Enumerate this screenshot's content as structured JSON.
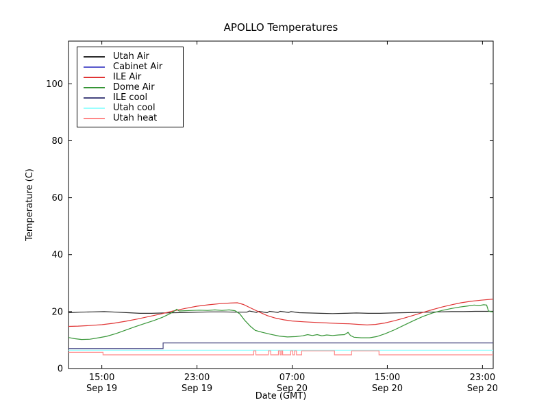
{
  "title": "APOLLO Temperatures",
  "chart_data": {
    "type": "line",
    "title": "APOLLO Temperatures",
    "xlabel": "Date (GMT)",
    "ylabel": "Temperature (C)",
    "x_unit": "hours since Sep 19 00:00 GMT",
    "xlim": [
      12.2,
      47.9
    ],
    "ylim": [
      0,
      115
    ],
    "grid": false,
    "legend_position": "upper-left-inside",
    "x_ticks": [
      {
        "h": 15,
        "line1": "15:00",
        "line2": "Sep 19"
      },
      {
        "h": 23,
        "line1": "23:00",
        "line2": "Sep 19"
      },
      {
        "h": 31,
        "line1": "07:00",
        "line2": "Sep 20"
      },
      {
        "h": 39,
        "line1": "15:00",
        "line2": "Sep 20"
      },
      {
        "h": 47,
        "line1": "23:00",
        "line2": "Sep 20"
      }
    ],
    "y_ticks": [
      0,
      20,
      40,
      60,
      80,
      100
    ],
    "series": [
      {
        "name": "Utah Air",
        "color": "#2a2a2a",
        "points": [
          [
            12.2,
            19.6
          ],
          [
            13.2,
            19.8
          ],
          [
            14.2,
            19.9
          ],
          [
            15.2,
            20.0
          ],
          [
            16.2,
            19.8
          ],
          [
            17.2,
            19.6
          ],
          [
            18.2,
            19.4
          ],
          [
            19.2,
            19.4
          ],
          [
            20.2,
            19.5
          ],
          [
            21.2,
            19.6
          ],
          [
            22.2,
            19.7
          ],
          [
            23.2,
            19.8
          ],
          [
            24.2,
            19.9
          ],
          [
            25.2,
            19.9
          ],
          [
            26.2,
            19.8
          ],
          [
            27.2,
            19.8
          ],
          [
            27.4,
            20.2
          ],
          [
            28.0,
            19.7
          ],
          [
            28.2,
            20.1
          ],
          [
            28.9,
            19.6
          ],
          [
            29.1,
            20.1
          ],
          [
            29.8,
            19.7
          ],
          [
            30.0,
            20.1
          ],
          [
            30.7,
            19.7
          ],
          [
            30.9,
            20.0
          ],
          [
            31.6,
            19.6
          ],
          [
            32.4,
            19.5
          ],
          [
            33.4,
            19.4
          ],
          [
            34.4,
            19.3
          ],
          [
            35.4,
            19.4
          ],
          [
            36.4,
            19.5
          ],
          [
            37.4,
            19.4
          ],
          [
            38.4,
            19.4
          ],
          [
            39.4,
            19.5
          ],
          [
            40.4,
            19.6
          ],
          [
            41.4,
            19.7
          ],
          [
            42.4,
            19.8
          ],
          [
            43.4,
            19.9
          ],
          [
            44.4,
            20.0
          ],
          [
            45.4,
            20.0
          ],
          [
            46.4,
            20.1
          ],
          [
            47.9,
            20.1
          ]
        ]
      },
      {
        "name": "Cabinet Air",
        "color": "#5858cc",
        "points": [
          [
            12.2,
            7.0
          ],
          [
            20.15,
            7.0
          ]
        ]
      },
      {
        "name": "ILE Air",
        "color": "#e03434",
        "points": [
          [
            12.2,
            14.8
          ],
          [
            13.0,
            14.9
          ],
          [
            14.0,
            15.1
          ],
          [
            15.0,
            15.4
          ],
          [
            16.0,
            15.9
          ],
          [
            17.0,
            16.6
          ],
          [
            18.0,
            17.4
          ],
          [
            19.0,
            18.3
          ],
          [
            20.0,
            19.2
          ],
          [
            21.0,
            20.2
          ],
          [
            22.0,
            21.1
          ],
          [
            23.0,
            21.9
          ],
          [
            24.0,
            22.4
          ],
          [
            25.0,
            22.8
          ],
          [
            25.8,
            23.0
          ],
          [
            26.4,
            23.1
          ],
          [
            26.9,
            22.5
          ],
          [
            27.5,
            21.3
          ],
          [
            28.2,
            19.9
          ],
          [
            28.9,
            18.6
          ],
          [
            29.6,
            17.7
          ],
          [
            30.3,
            17.1
          ],
          [
            31.0,
            16.7
          ],
          [
            32.0,
            16.4
          ],
          [
            33.0,
            16.2
          ],
          [
            34.0,
            16.0
          ],
          [
            35.0,
            15.8
          ],
          [
            35.8,
            15.7
          ],
          [
            36.6,
            15.5
          ],
          [
            37.3,
            15.3
          ],
          [
            38.0,
            15.5
          ],
          [
            38.8,
            16.0
          ],
          [
            39.6,
            16.8
          ],
          [
            40.4,
            17.7
          ],
          [
            41.2,
            18.7
          ],
          [
            42.0,
            19.7
          ],
          [
            42.8,
            20.7
          ],
          [
            43.6,
            21.6
          ],
          [
            44.4,
            22.4
          ],
          [
            45.2,
            23.1
          ],
          [
            46.0,
            23.6
          ],
          [
            46.9,
            24.0
          ],
          [
            47.9,
            24.4
          ]
        ]
      },
      {
        "name": "Dome Air",
        "color": "#369536",
        "points": [
          [
            12.2,
            10.9
          ],
          [
            12.7,
            10.5
          ],
          [
            13.3,
            10.2
          ],
          [
            14.0,
            10.3
          ],
          [
            14.6,
            10.7
          ],
          [
            15.4,
            11.3
          ],
          [
            16.2,
            12.3
          ],
          [
            17.0,
            13.5
          ],
          [
            17.8,
            14.7
          ],
          [
            18.6,
            15.8
          ],
          [
            19.4,
            16.9
          ],
          [
            20.1,
            18.0
          ],
          [
            20.7,
            19.2
          ],
          [
            21.1,
            20.2
          ],
          [
            21.3,
            20.8
          ],
          [
            21.5,
            20.2
          ],
          [
            22.0,
            20.3
          ],
          [
            22.6,
            20.4
          ],
          [
            23.2,
            20.5
          ],
          [
            23.9,
            20.4
          ],
          [
            24.5,
            20.6
          ],
          [
            25.1,
            20.4
          ],
          [
            25.7,
            20.6
          ],
          [
            26.2,
            20.3
          ],
          [
            26.6,
            19.2
          ],
          [
            27.0,
            17.0
          ],
          [
            27.5,
            14.8
          ],
          [
            27.9,
            13.4
          ],
          [
            28.5,
            12.7
          ],
          [
            29.2,
            12.0
          ],
          [
            29.9,
            11.4
          ],
          [
            30.6,
            11.1
          ],
          [
            31.3,
            11.2
          ],
          [
            31.9,
            11.5
          ],
          [
            32.3,
            11.9
          ],
          [
            32.7,
            11.6
          ],
          [
            33.1,
            11.9
          ],
          [
            33.5,
            11.5
          ],
          [
            33.9,
            11.8
          ],
          [
            34.4,
            11.6
          ],
          [
            34.9,
            11.8
          ],
          [
            35.4,
            11.9
          ],
          [
            35.7,
            12.7
          ],
          [
            35.9,
            11.6
          ],
          [
            36.2,
            11.0
          ],
          [
            36.8,
            10.8
          ],
          [
            37.5,
            10.8
          ],
          [
            38.1,
            11.2
          ],
          [
            38.8,
            12.2
          ],
          [
            39.6,
            13.6
          ],
          [
            40.4,
            15.2
          ],
          [
            41.2,
            16.8
          ],
          [
            42.0,
            18.3
          ],
          [
            42.8,
            19.5
          ],
          [
            43.6,
            20.4
          ],
          [
            44.4,
            21.1
          ],
          [
            45.1,
            21.6
          ],
          [
            45.8,
            22.0
          ],
          [
            46.3,
            22.3
          ],
          [
            46.7,
            22.1
          ],
          [
            47.1,
            22.4
          ],
          [
            47.35,
            22.3
          ],
          [
            47.5,
            20.2
          ],
          [
            47.9,
            19.8
          ]
        ]
      },
      {
        "name": "ILE cool",
        "color": "#44447e",
        "points": [
          [
            12.2,
            7.0
          ],
          [
            20.15,
            7.0
          ],
          [
            20.15,
            9.0
          ],
          [
            47.9,
            9.0
          ]
        ]
      },
      {
        "name": "Utah cool",
        "color": "#99ffff",
        "points": [
          [
            12.2,
            6.4
          ],
          [
            47.9,
            6.4
          ]
        ]
      },
      {
        "name": "Utah heat",
        "color": "#ff8888",
        "points": [
          [
            12.2,
            5.7
          ],
          [
            15.1,
            5.7
          ],
          [
            15.1,
            4.8
          ],
          [
            27.77,
            4.8
          ],
          [
            27.77,
            6.2
          ],
          [
            27.95,
            6.2
          ],
          [
            27.95,
            4.8
          ],
          [
            29.0,
            4.8
          ],
          [
            29.0,
            6.2
          ],
          [
            29.2,
            6.2
          ],
          [
            29.2,
            4.8
          ],
          [
            29.85,
            4.8
          ],
          [
            29.85,
            6.2
          ],
          [
            30.0,
            6.2
          ],
          [
            30.0,
            4.8
          ],
          [
            30.1,
            4.8
          ],
          [
            30.1,
            6.2
          ],
          [
            30.2,
            6.2
          ],
          [
            30.2,
            4.8
          ],
          [
            30.88,
            4.8
          ],
          [
            30.88,
            6.2
          ],
          [
            31.05,
            6.2
          ],
          [
            31.05,
            4.8
          ],
          [
            31.2,
            4.8
          ],
          [
            31.2,
            6.2
          ],
          [
            31.36,
            6.2
          ],
          [
            31.36,
            4.8
          ],
          [
            31.8,
            4.8
          ],
          [
            31.8,
            6.2
          ],
          [
            34.56,
            6.2
          ],
          [
            34.56,
            4.8
          ],
          [
            36.0,
            4.8
          ],
          [
            36.0,
            6.2
          ],
          [
            38.3,
            6.2
          ],
          [
            38.3,
            4.8
          ],
          [
            47.9,
            4.8
          ]
        ]
      }
    ]
  }
}
